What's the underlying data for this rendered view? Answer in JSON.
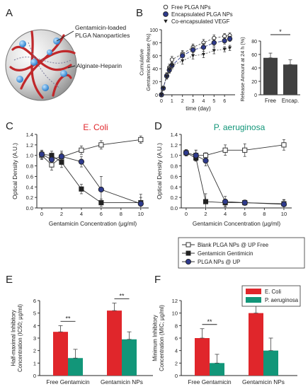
{
  "panels": {
    "A": {
      "letter": "A",
      "label_nps": "Gentamicin-loaded\nPLGA Nanoparticles",
      "label_gel": "Alginate-Heparin"
    },
    "B": {
      "letter": "B"
    },
    "C": {
      "letter": "C"
    },
    "D": {
      "letter": "D"
    },
    "E": {
      "letter": "E"
    },
    "F": {
      "letter": "F"
    }
  },
  "colors": {
    "ecoli": "#e0262b",
    "paeruginosa": "#129679",
    "navy": "#2e3a8c",
    "darkbar": "#404040",
    "axis": "#222222"
  },
  "chart_data": [
    {
      "id": "B-release",
      "type": "line",
      "ylabel": "Cumulative\nGentamicin Release (%)",
      "xlabel": "time (day)",
      "xlim": [
        0,
        7
      ],
      "ylim": [
        0,
        100
      ],
      "xticks": [
        0,
        1,
        2,
        3,
        4,
        5,
        6
      ],
      "yticks": [
        0,
        20,
        40,
        60,
        80,
        100
      ],
      "legend_position": "top",
      "series": [
        {
          "name": "Free PLGA NPs",
          "marker": "circle-open",
          "x": [
            0,
            0.17,
            0.5,
            0.75,
            1,
            2,
            3,
            4,
            5,
            6,
            6.5
          ],
          "y": [
            0,
            10,
            30,
            42,
            54,
            63,
            73,
            80,
            87,
            90,
            91
          ],
          "err": [
            2,
            3,
            4,
            5,
            5,
            5,
            5,
            5,
            5,
            4,
            4
          ]
        },
        {
          "name": "Encapsulated PLGA NPs",
          "marker": "circle-filled",
          "x": [
            0,
            0.17,
            0.5,
            0.75,
            1,
            2,
            3,
            4,
            5,
            6,
            6.5
          ],
          "y": [
            0,
            10,
            29,
            38,
            45,
            60,
            69,
            73,
            80,
            83,
            86
          ],
          "err": [
            2,
            3,
            4,
            5,
            5,
            6,
            7,
            6,
            5,
            5,
            4
          ]
        },
        {
          "name": "Co-encapsulated VEGF",
          "marker": "triangle-down",
          "x": [
            0,
            0.17,
            0.5,
            0.75,
            1,
            2,
            3,
            4,
            5,
            6,
            6.5
          ],
          "y": [
            0,
            10,
            28,
            38,
            45,
            52,
            60,
            62,
            68,
            70,
            72
          ],
          "err": [
            2,
            3,
            4,
            4,
            5,
            5,
            5,
            5,
            5,
            4,
            4
          ]
        }
      ]
    },
    {
      "id": "B-bar",
      "type": "bar",
      "ylabel": "Release Amount at 24 h (%)",
      "categories": [
        "Free",
        "Encap."
      ],
      "ylim": [
        0,
        80
      ],
      "yticks": [
        0,
        20,
        40,
        60,
        80
      ],
      "values": [
        55,
        45
      ],
      "err": [
        7,
        7
      ],
      "significance": "*"
    },
    {
      "id": "C",
      "type": "line",
      "title": "E. Coli",
      "xlabel": "Gentamicin Concentration (μg/ml)",
      "ylabel": "Optical Density (A.U.)",
      "xlim": [
        -0.5,
        10.8
      ],
      "ylim": [
        0,
        1.4
      ],
      "xticks": [
        0,
        2,
        4,
        6,
        8,
        10
      ],
      "yticks": [
        0,
        0.2,
        0.4,
        0.6,
        0.8,
        1.0,
        1.2,
        1.4
      ],
      "series": [
        {
          "name": "Blank PLGA NPs @ UP Free",
          "marker": "square-open",
          "x": [
            0,
            1,
            2,
            4,
            6,
            10
          ],
          "y": [
            1.0,
            0.82,
            0.97,
            1.1,
            1.2,
            1.3
          ],
          "err": [
            0.08,
            0.1,
            0.08,
            0.08,
            0.08,
            0.07
          ]
        },
        {
          "name": "Gentamicin Gentimicin",
          "marker": "square-filled",
          "x": [
            0,
            1,
            2,
            4,
            6,
            10
          ],
          "y": [
            1.02,
            1.0,
            0.87,
            0.36,
            0.1,
            0.1
          ],
          "err": [
            0.06,
            0.08,
            0.1,
            0.09,
            0.07,
            0.1
          ]
        },
        {
          "name": "PLGA NPs @ UP",
          "marker": "circle-filled",
          "x": [
            0,
            1,
            2,
            4,
            6,
            10
          ],
          "y": [
            1.02,
            0.92,
            0.98,
            0.88,
            0.35,
            0.08
          ],
          "err": [
            0.08,
            0.12,
            0.1,
            0.1,
            0.25,
            0.18
          ]
        }
      ]
    },
    {
      "id": "D",
      "type": "line",
      "title": "P. aeruginosa",
      "xlabel": "Gentamicin Concentration (μg/ml)",
      "ylabel": "Optical Density (A.U.)",
      "xlim": [
        -0.5,
        10.8
      ],
      "ylim": [
        0,
        1.4
      ],
      "xticks": [
        0,
        2,
        4,
        6,
        8,
        10
      ],
      "yticks": [
        0,
        0.2,
        0.4,
        0.6,
        0.8,
        1.0,
        1.2,
        1.4
      ],
      "series": [
        {
          "name": "Blank PLGA NPs @ UP Free",
          "marker": "square-open",
          "x": [
            0,
            1,
            2,
            4,
            6,
            10
          ],
          "y": [
            1.05,
            1.0,
            1.0,
            1.1,
            1.1,
            1.2
          ],
          "err": [
            0.05,
            0.1,
            0.05,
            0.1,
            0.12,
            0.1
          ]
        },
        {
          "name": "Gentamicin Gentimicin",
          "marker": "square-filled",
          "x": [
            0,
            1,
            2,
            4,
            6,
            10
          ],
          "y": [
            1.05,
            0.95,
            0.12,
            0.1,
            0.1,
            0.08
          ],
          "err": [
            0.06,
            0.06,
            0.15,
            0.06,
            0.05,
            0.08
          ]
        },
        {
          "name": "PLGA NPs @ UP",
          "marker": "circle-filled",
          "x": [
            0,
            1,
            2,
            4,
            6,
            10
          ],
          "y": [
            1.05,
            1.0,
            0.9,
            0.12,
            0.1,
            0.07
          ],
          "err": [
            0.06,
            0.1,
            0.1,
            0.1,
            0.05,
            0.08
          ]
        }
      ]
    },
    {
      "id": "CD-legend",
      "type": "legend",
      "entries": [
        {
          "name": "Blank PLGA NPs @ UP Free",
          "marker": "square-open"
        },
        {
          "name": "Gentamicin Gentimicin",
          "marker": "square-filled"
        },
        {
          "name": "PLGA NPs @ UP",
          "marker": "circle-filled"
        }
      ]
    },
    {
      "id": "E",
      "type": "bar",
      "ylabel": "Half-maximal Inhibitory\nConcentration (IC50; μg/ml)",
      "categories": [
        "Free Gentamicin",
        "Gentamicin NPs"
      ],
      "ylim": [
        0,
        6
      ],
      "yticks": [
        0,
        1,
        2,
        3,
        4,
        5,
        6
      ],
      "series": [
        {
          "name": "E. Coli",
          "values": [
            3.5,
            5.2
          ],
          "err": [
            0.5,
            0.6
          ]
        },
        {
          "name": "P. aeruginosa",
          "values": [
            1.4,
            2.9
          ],
          "err": [
            0.7,
            0.6
          ]
        }
      ],
      "significance": [
        "**",
        "**"
      ]
    },
    {
      "id": "F",
      "type": "bar",
      "ylabel": "Minimum Inhibitory\nConcentration (MIC; μg/ml)",
      "categories": [
        "Free Gentamicin",
        "Gentamicin NPs"
      ],
      "ylim": [
        0,
        12
      ],
      "yticks": [
        0,
        2,
        4,
        6,
        8,
        10,
        12
      ],
      "series": [
        {
          "name": "E. Coli",
          "values": [
            6,
            10
          ],
          "err": [
            1.5,
            2.2
          ]
        },
        {
          "name": "P. aeruginosa",
          "values": [
            2,
            4
          ],
          "err": [
            1.4,
            2.0
          ]
        }
      ],
      "legend_position": "top-right",
      "significance": [
        "**",
        "**"
      ]
    }
  ]
}
